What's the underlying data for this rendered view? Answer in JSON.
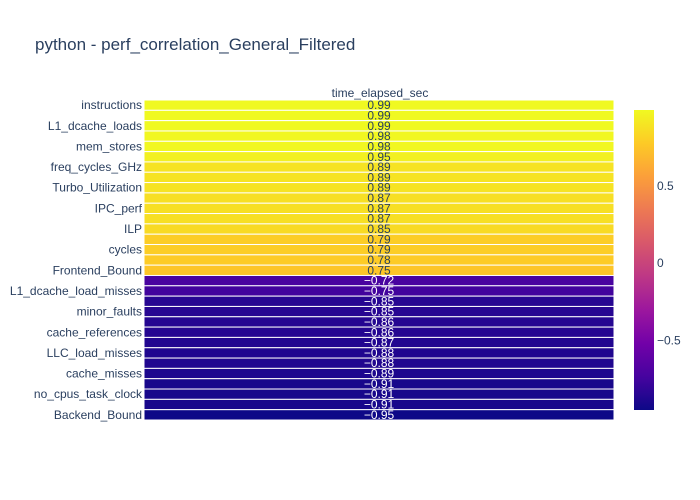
{
  "chart_data": {
    "type": "heatmap",
    "title": "python - perf_correlation_General_Filtered",
    "x_categories": [
      "time_elapsed_sec"
    ],
    "y_tick_labels": [
      "instructions",
      "L1_dcache_loads",
      "mem_stores",
      "freq_cycles_GHz",
      "Turbo_Utilization",
      "IPC_perf",
      "ILP",
      "cycles",
      "Frontend_Bound",
      "L1_dcache_load_misses",
      "minor_faults",
      "cache_references",
      "LLC_load_misses",
      "cache_misses",
      "no_cpus_task_clock",
      "Backend_Bound"
    ],
    "row_count": 31,
    "values": [
      0.99,
      0.99,
      0.99,
      0.98,
      0.98,
      0.95,
      0.89,
      0.89,
      0.89,
      0.87,
      0.87,
      0.87,
      0.85,
      0.79,
      0.79,
      0.78,
      0.75,
      -0.72,
      -0.75,
      -0.85,
      -0.85,
      -0.86,
      -0.86,
      -0.87,
      -0.88,
      -0.88,
      -0.89,
      -0.91,
      -0.91,
      -0.91,
      -0.95
    ],
    "value_labels": [
      "0.99",
      "0.99",
      "0.99",
      "0.98",
      "0.98",
      "0.95",
      "0.89",
      "0.89",
      "0.89",
      "0.87",
      "0.87",
      "0.87",
      "0.85",
      "0.79",
      "0.79",
      "0.78",
      "0.75",
      "−0.72",
      "−0.75",
      "−0.85",
      "−0.85",
      "−0.86",
      "−0.86",
      "−0.87",
      "−0.88",
      "−0.88",
      "−0.89",
      "−0.91",
      "−0.91",
      "−0.91",
      "−0.95"
    ],
    "zrange": [
      -0.95,
      0.99
    ],
    "colorscale": "Plasma",
    "colorbar_ticks": [
      {
        "value": 0.5,
        "label": "0.5"
      },
      {
        "value": 0,
        "label": "0"
      },
      {
        "value": -0.5,
        "label": "−0.5"
      }
    ]
  }
}
